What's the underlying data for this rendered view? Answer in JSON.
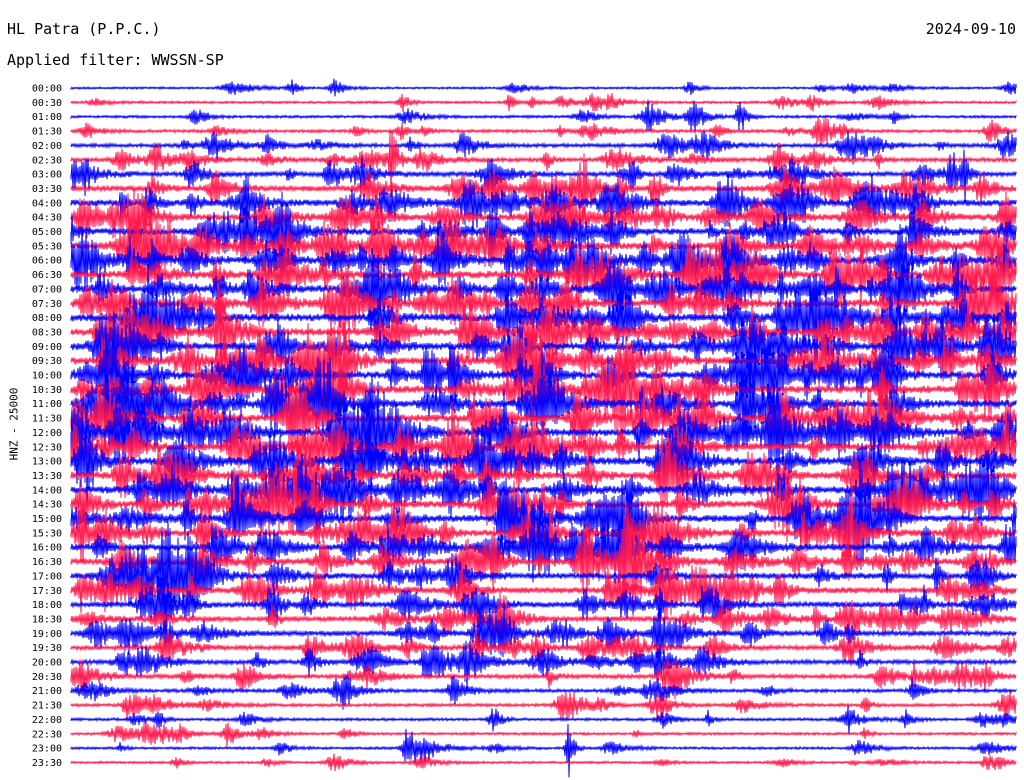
{
  "header": {
    "station": "HL Patra (P.P.C.)",
    "date": "2024-09-10",
    "filter": "Applied filter: WWSSN-SP"
  },
  "chart_data": {
    "type": "line",
    "title": "HL Patra (P.P.C.)",
    "subtitle": "Applied filter: WWSSN-SP",
    "ylabel": "HNZ - 25000",
    "colors": [
      "#0000ff",
      "#ff1a4d"
    ],
    "row_labels": [
      "00:00",
      "00:30",
      "01:00",
      "01:30",
      "02:00",
      "02:30",
      "03:00",
      "03:30",
      "04:00",
      "04:30",
      "05:00",
      "05:30",
      "06:00",
      "06:30",
      "07:00",
      "07:30",
      "08:00",
      "08:30",
      "09:00",
      "09:30",
      "10:00",
      "10:30",
      "11:00",
      "11:30",
      "12:00",
      "12:30",
      "13:00",
      "13:30",
      "14:00",
      "14:30",
      "15:00",
      "15:30",
      "16:00",
      "16:30",
      "17:00",
      "17:30",
      "18:00",
      "18:30",
      "19:00",
      "19:30",
      "20:00",
      "20:30",
      "21:00",
      "21:30",
      "22:00",
      "22:30",
      "23:00",
      "23:30"
    ],
    "activity": [
      0.15,
      0.2,
      0.22,
      0.3,
      0.4,
      0.45,
      0.55,
      0.7,
      0.8,
      0.85,
      0.9,
      0.95,
      1.0,
      1.0,
      1.0,
      1.0,
      1.0,
      1.0,
      1.0,
      1.0,
      1.0,
      1.0,
      1.0,
      1.0,
      1.0,
      1.0,
      1.0,
      1.0,
      0.95,
      0.95,
      0.9,
      0.9,
      0.85,
      0.85,
      0.8,
      0.75,
      0.7,
      0.65,
      0.6,
      0.55,
      0.5,
      0.45,
      0.35,
      0.3,
      0.25,
      0.22,
      0.2,
      0.18
    ]
  }
}
